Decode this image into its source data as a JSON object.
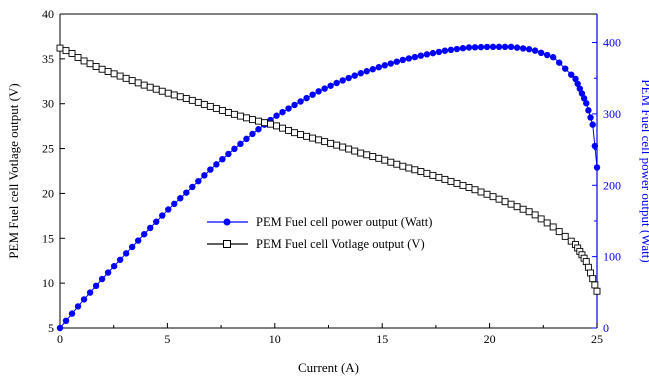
{
  "chart_data": {
    "type": "line",
    "xlabel": "Current (A)",
    "ylabel_left": "PEM Fuel cell Votlage output (V)",
    "ylabel_right": "PEM Fuel cell power output (Watt)",
    "xlim": [
      0,
      25
    ],
    "ylim_left": [
      5,
      40
    ],
    "ylim_right": [
      0,
      440
    ],
    "x_ticks": [
      "0",
      "5",
      "10",
      "15",
      "20",
      "25"
    ],
    "y_left_ticks": [
      "5",
      "10",
      "15",
      "20",
      "25",
      "30",
      "35",
      "40"
    ],
    "y_right_ticks": [
      "0",
      "100",
      "200",
      "300",
      "400"
    ],
    "legend_position": "center-left",
    "grid": false,
    "colors": {
      "power": "#0000ff",
      "voltage": "#000000"
    },
    "series": [
      {
        "name": "PEM Fuel cell power output (Watt)",
        "axis": "right",
        "marker": "filled-circle",
        "x": [
          0,
          0.5,
          1,
          2,
          3,
          4,
          5,
          6,
          7,
          8,
          9,
          10,
          11,
          12,
          13,
          14,
          15,
          16,
          17,
          18,
          19,
          20,
          21,
          22,
          23,
          24,
          24.5,
          24.8,
          25
        ],
        "y": [
          0,
          18,
          36,
          70,
          102,
          134,
          165,
          193,
          222,
          248,
          273,
          296,
          314,
          331,
          345,
          357,
          367,
          376,
          383,
          389,
          393,
          394,
          394,
          390,
          379,
          349,
          315,
          285,
          225
        ]
      },
      {
        "name": "PEM Fuel cell Votlage output (V)",
        "axis": "left",
        "marker": "open-square",
        "x": [
          0,
          0.5,
          1,
          2,
          3,
          4,
          5,
          6,
          7,
          8,
          9,
          10,
          11,
          12,
          13,
          14,
          15,
          16,
          17,
          18,
          19,
          20,
          21,
          22,
          23,
          24,
          24.5,
          24.8,
          25
        ],
        "y": [
          36.2,
          35.7,
          34.9,
          33.8,
          32.9,
          32.0,
          31.2,
          30.5,
          29.7,
          28.9,
          28.2,
          27.6,
          26.7,
          26.0,
          25.3,
          24.5,
          23.8,
          23.0,
          22.3,
          21.5,
          20.7,
          19.8,
          18.8,
          17.8,
          16.2,
          14.3,
          12.4,
          10.5,
          9.1
        ]
      }
    ]
  }
}
